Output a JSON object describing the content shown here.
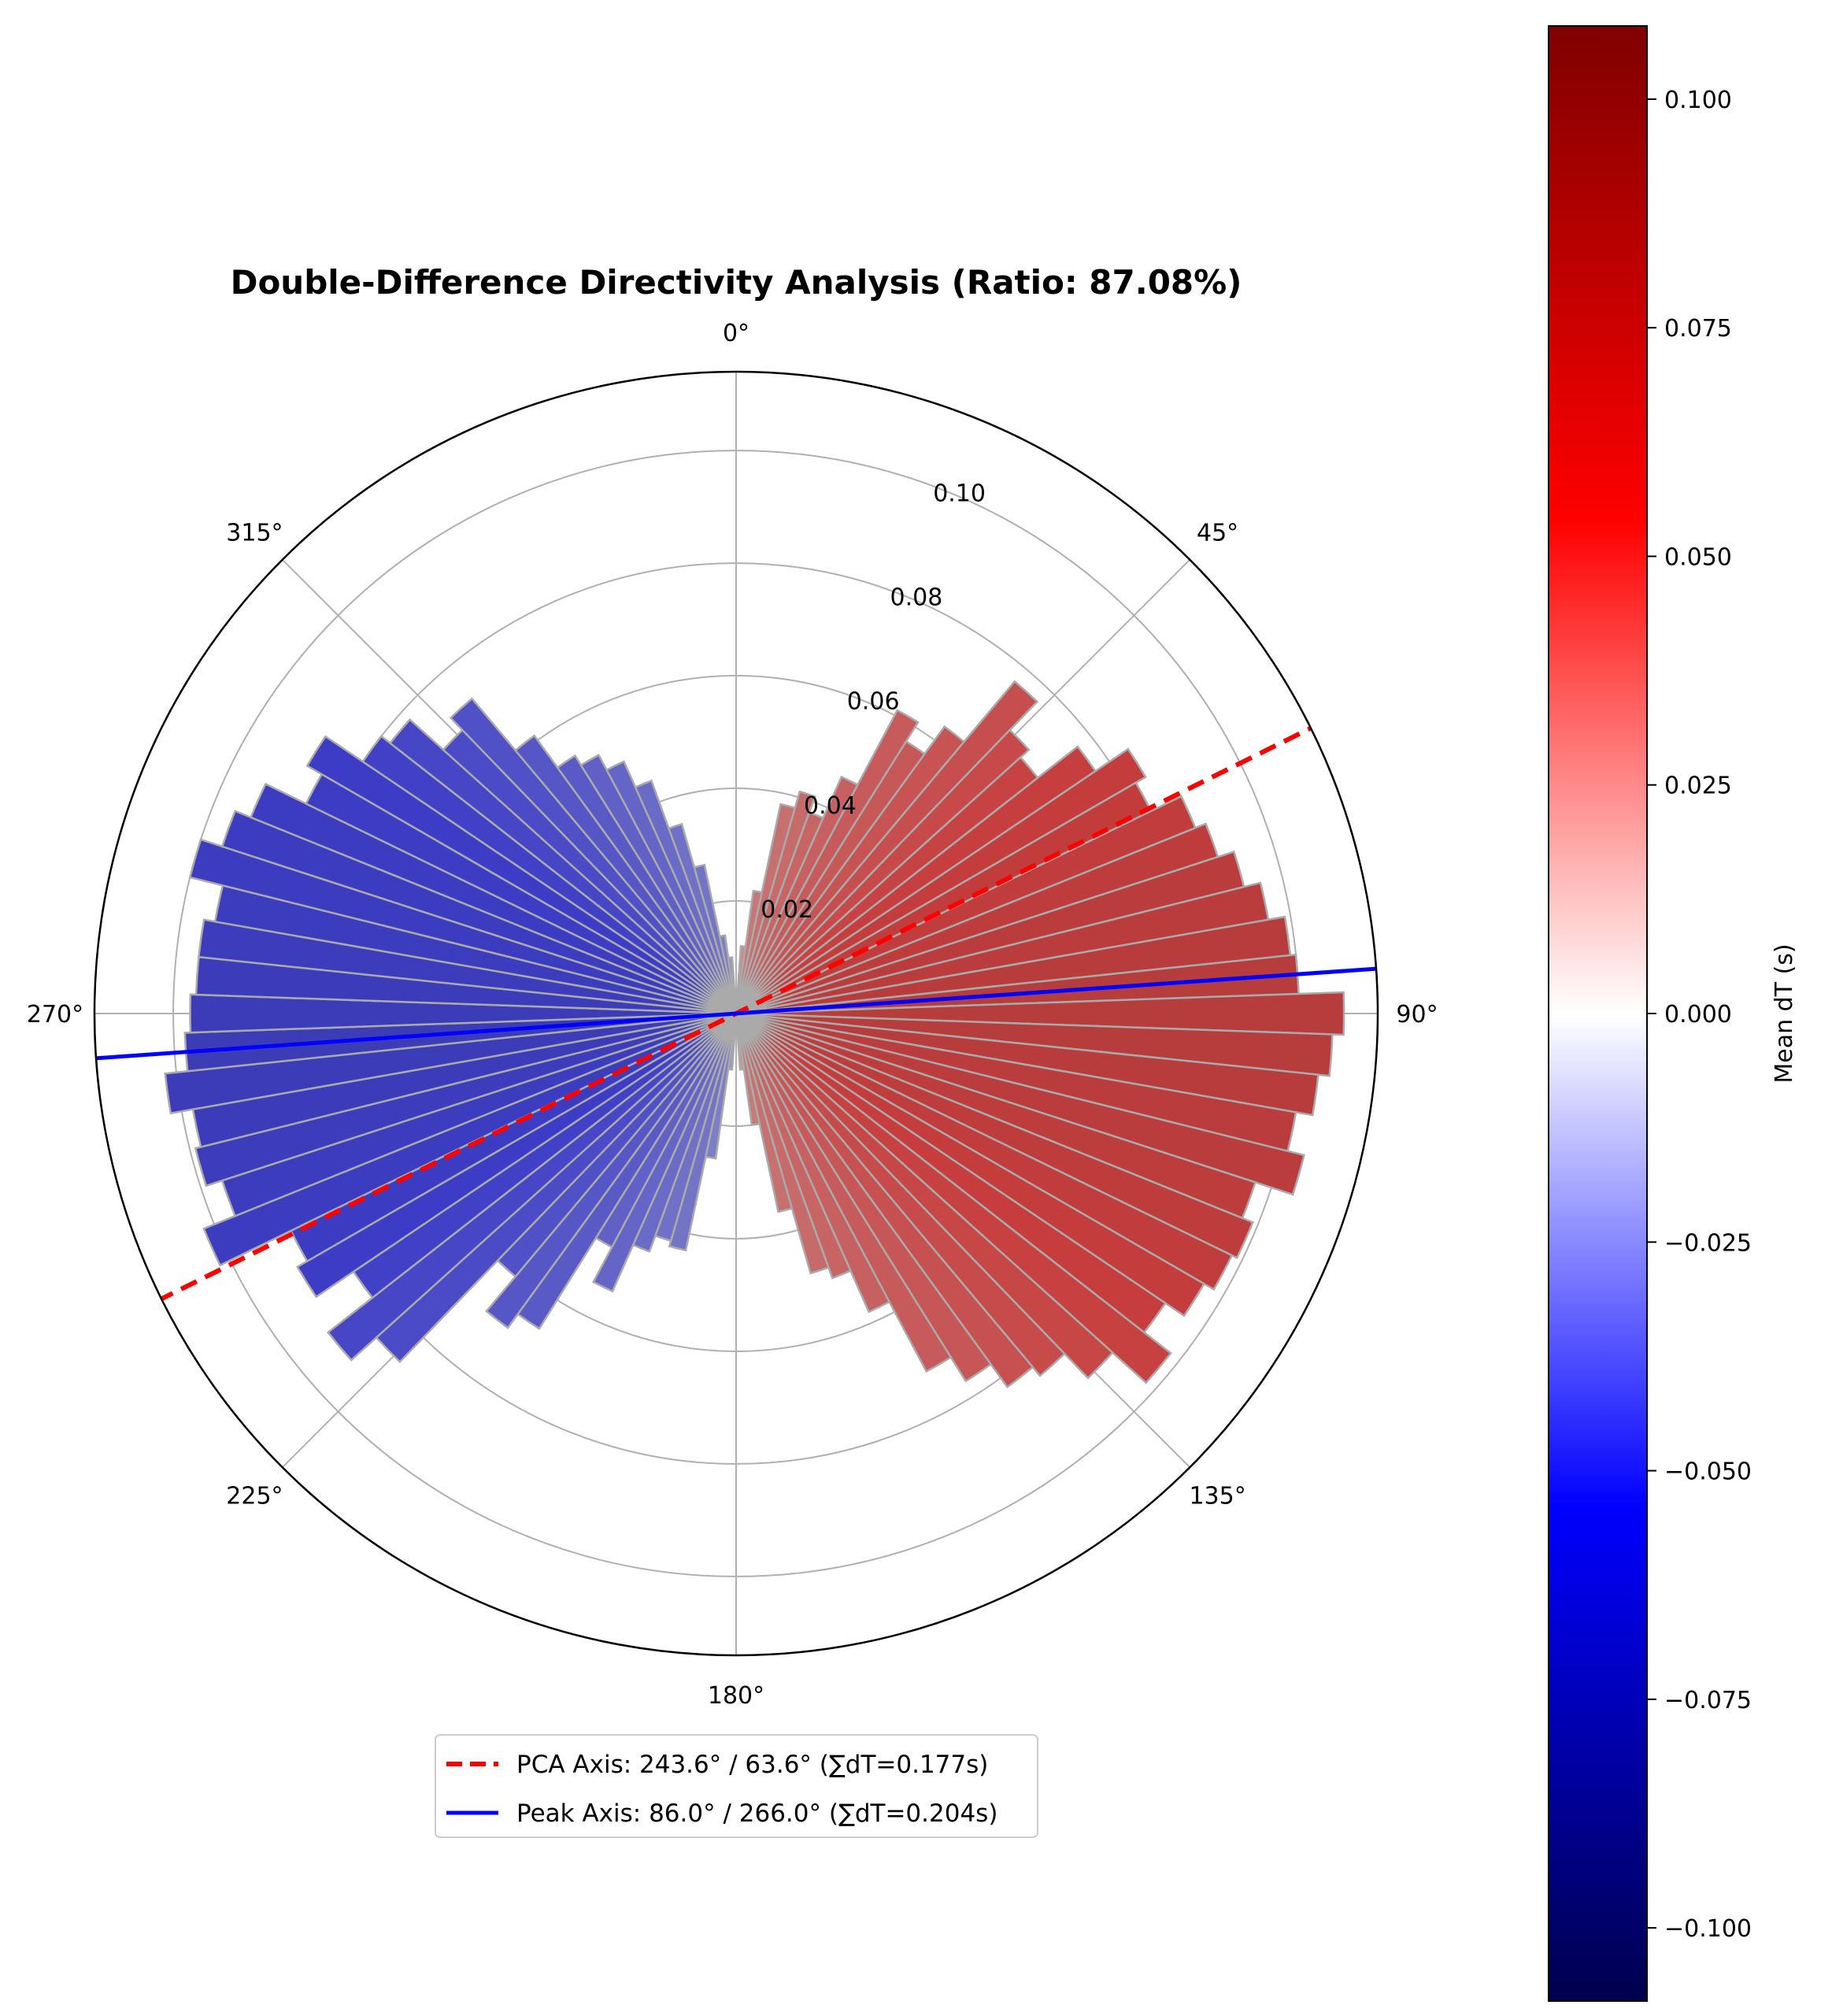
{
  "chart_data": {
    "type": "polar-bar",
    "title": "Double-Difference Directivity Analysis (Ratio: 87.08%)",
    "theta_zero_location": "N",
    "theta_direction": "clockwise",
    "angle_ticks": [
      "0°",
      "45°",
      "90°",
      "135°",
      "180°",
      "225°",
      "270°",
      "315°"
    ],
    "radial_ticks": [
      "0.02",
      "0.04",
      "0.06",
      "0.08",
      "0.10"
    ],
    "radial_tick_values": [
      0.02,
      0.04,
      0.06,
      0.08,
      0.1
    ],
    "rlim": [
      0,
      0.114
    ],
    "grid": true,
    "bin_width_deg": 4,
    "bins": {
      "start_deg": [
        0,
        4,
        8,
        12,
        16,
        20,
        24,
        28,
        32,
        36,
        40,
        44,
        48,
        52,
        56,
        60,
        64,
        68,
        72,
        76,
        80,
        84,
        88,
        92,
        96,
        100,
        104,
        108,
        112,
        116,
        120,
        124,
        128,
        132,
        136,
        140,
        144,
        148,
        152,
        156,
        160,
        164,
        168,
        172,
        176,
        180,
        184,
        188,
        192,
        196,
        200,
        204,
        208,
        212,
        216,
        220,
        224,
        228,
        232,
        236,
        240,
        244,
        248,
        252,
        256,
        260,
        264,
        268,
        272,
        276,
        280,
        284,
        288,
        292,
        296,
        300,
        304,
        308,
        312,
        316,
        320,
        324,
        328,
        332,
        336,
        340,
        344,
        348,
        352,
        356
      ],
      "radius": [
        0.002,
        0.012,
        0.022,
        0.038,
        0.041,
        0.038,
        0.046,
        0.061,
        0.057,
        0.063,
        0.077,
        0.07,
        0.068,
        0.077,
        0.084,
        0.082,
        0.088,
        0.09,
        0.093,
        0.096,
        0.099,
        0.1,
        0.108,
        0.106,
        0.104,
        0.101,
        0.104,
        0.097,
        0.099,
        0.098,
        0.096,
        0.092,
        0.098,
        0.09,
        0.084,
        0.082,
        0.077,
        0.072,
        0.058,
        0.05,
        0.048,
        0.036,
        0.02,
        0.01,
        0.004,
        0.002,
        0.01,
        0.026,
        0.043,
        0.042,
        0.045,
        0.054,
        0.047,
        0.066,
        0.069,
        0.061,
        0.086,
        0.092,
        0.082,
        0.09,
        0.088,
        0.102,
        0.096,
        0.099,
        0.098,
        0.102,
        0.098,
        0.097,
        0.096,
        0.096,
        0.094,
        0.1,
        0.096,
        0.093,
        0.085,
        0.088,
        0.08,
        0.078,
        0.07,
        0.073,
        0.061,
        0.054,
        0.052,
        0.049,
        0.044,
        0.035,
        0.027,
        0.014,
        0.01,
        0.004
      ],
      "mean_dT": [
        0.006,
        0.022,
        0.031,
        0.034,
        0.036,
        0.038,
        0.04,
        0.042,
        0.043,
        0.045,
        0.047,
        0.049,
        0.051,
        0.053,
        0.055,
        0.057,
        0.059,
        0.061,
        0.063,
        0.064,
        0.065,
        0.066,
        0.067,
        0.066,
        0.065,
        0.064,
        0.063,
        0.062,
        0.06,
        0.058,
        0.056,
        0.054,
        0.052,
        0.05,
        0.048,
        0.046,
        0.044,
        0.042,
        0.04,
        0.038,
        0.036,
        0.034,
        0.03,
        0.02,
        0.008,
        -0.006,
        -0.02,
        -0.028,
        -0.032,
        -0.034,
        -0.036,
        -0.038,
        -0.04,
        -0.042,
        -0.044,
        -0.046,
        -0.048,
        -0.05,
        -0.052,
        -0.054,
        -0.056,
        -0.058,
        -0.059,
        -0.06,
        -0.061,
        -0.062,
        -0.063,
        -0.062,
        -0.061,
        -0.06,
        -0.059,
        -0.058,
        -0.057,
        -0.056,
        -0.055,
        -0.054,
        -0.052,
        -0.05,
        -0.048,
        -0.046,
        -0.044,
        -0.042,
        -0.04,
        -0.038,
        -0.036,
        -0.034,
        -0.032,
        -0.028,
        -0.02,
        -0.008
      ]
    },
    "axis_lines": [
      {
        "name": "PCA Axis: 243.6° / 63.6° (∑dT=0.177s)",
        "angle_deg": 63.6,
        "color": "#ff0000",
        "style": "dashed"
      },
      {
        "name": "Peak Axis: 86.0° / 266.0° (∑dT=0.204s)",
        "angle_deg": 86.0,
        "color": "#0000ff",
        "style": "solid"
      }
    ],
    "legend": {
      "placement": "lower-center",
      "entries": [
        "PCA Axis: 243.6° / 63.6° (∑dT=0.177s)",
        "Peak Axis: 86.0° / 266.0° (∑dT=0.204s)"
      ]
    },
    "colorbar": {
      "label": "Mean dT (s)",
      "colormap": "seismic",
      "vmin": -0.108,
      "vmax": 0.108,
      "ticks": [
        "−0.100",
        "−0.075",
        "−0.050",
        "−0.025",
        "0.000",
        "0.025",
        "0.050",
        "0.075",
        "0.100"
      ],
      "tick_values": [
        -0.1,
        -0.075,
        -0.05,
        -0.025,
        0.0,
        0.025,
        0.05,
        0.075,
        0.1
      ]
    },
    "colors": {
      "bar_edge": "#aaaaaa",
      "grid": "#b0b0b0",
      "frame": "#000000"
    }
  }
}
